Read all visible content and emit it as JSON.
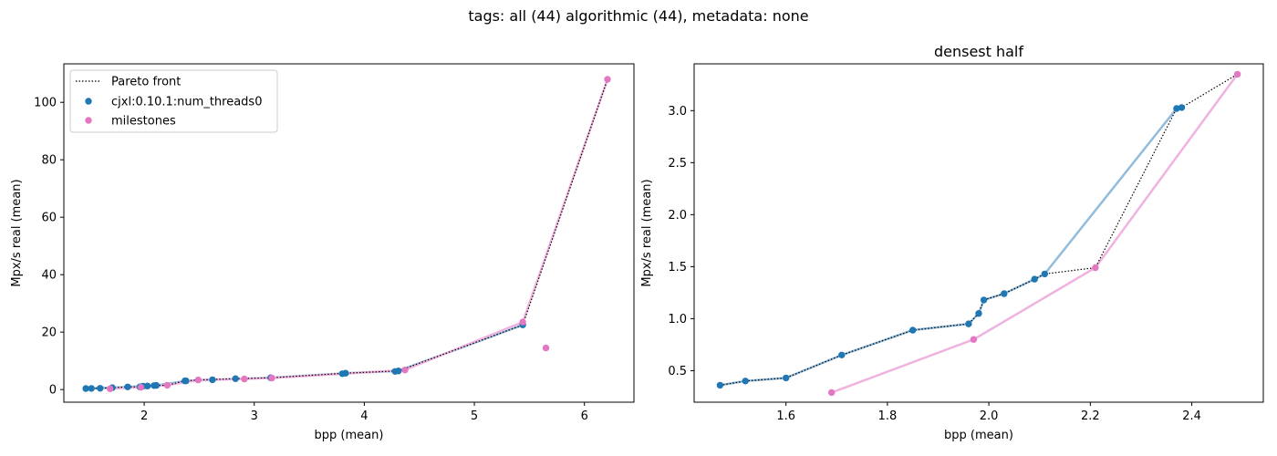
{
  "suptitle": "tags: all (44) algorithmic (44), metadata: none",
  "colors": {
    "series_blue": "#1f77b4",
    "series_pink": "#e377c2",
    "series_blue_line": "#92bcdc",
    "series_pink_line": "#f0b3e0",
    "pareto": "#000000"
  },
  "chart_data": [
    {
      "type": "scatter",
      "title": "",
      "xlabel": "bpp (mean)",
      "ylabel": "Mpx/s real (mean)",
      "xlim": [
        1.27,
        6.45
      ],
      "ylim": [
        -4.4,
        113.4
      ],
      "xticks": [
        2,
        3,
        4,
        5,
        6
      ],
      "yticks": [
        0,
        20,
        40,
        60,
        80,
        100
      ],
      "legend": "upper-left",
      "legend_entries": [
        "Pareto front",
        "cjxl:0.10.1:num_threads0",
        "milestones"
      ],
      "series": [
        {
          "name": "cjxl:0.10.1:num_threads0",
          "color": "#1f77b4",
          "line_color": "#92bcdc",
          "points": [
            [
              1.47,
              0.36
            ],
            [
              1.52,
              0.4
            ],
            [
              1.6,
              0.43
            ],
            [
              1.71,
              0.65
            ],
            [
              1.85,
              0.89
            ],
            [
              1.96,
              0.95
            ],
            [
              1.98,
              1.05
            ],
            [
              1.99,
              1.18
            ],
            [
              2.03,
              1.24
            ],
            [
              2.09,
              1.38
            ],
            [
              2.11,
              1.43
            ],
            [
              2.37,
              3.02
            ],
            [
              2.38,
              3.03
            ],
            [
              2.62,
              3.4
            ],
            [
              2.83,
              3.8
            ],
            [
              3.15,
              4.1
            ],
            [
              3.8,
              5.5
            ],
            [
              3.83,
              5.7
            ],
            [
              4.28,
              6.3
            ],
            [
              4.31,
              6.5
            ],
            [
              5.44,
              22.5
            ]
          ],
          "line": [
            [
              1.47,
              0.36
            ],
            [
              1.71,
              0.65
            ],
            [
              2.11,
              1.43
            ],
            [
              2.38,
              3.03
            ],
            [
              3.15,
              4.1
            ],
            [
              3.83,
              5.7
            ],
            [
              4.31,
              6.5
            ],
            [
              5.44,
              22.5
            ]
          ]
        },
        {
          "name": "milestones",
          "color": "#e377c2",
          "line_color": "#f0b3e0",
          "points": [
            [
              1.69,
              0.29
            ],
            [
              1.97,
              0.8
            ],
            [
              2.21,
              1.49
            ],
            [
              2.49,
              3.35
            ],
            [
              2.91,
              3.7
            ],
            [
              3.16,
              4.0
            ],
            [
              4.37,
              6.8
            ],
            [
              5.44,
              23.5
            ],
            [
              5.65,
              14.5
            ],
            [
              6.21,
              108.0
            ]
          ],
          "line": [
            [
              1.69,
              0.29
            ],
            [
              1.97,
              0.8
            ],
            [
              2.21,
              1.49
            ],
            [
              2.49,
              3.35
            ],
            [
              2.91,
              3.7
            ],
            [
              3.16,
              4.0
            ],
            [
              4.37,
              6.8
            ],
            [
              5.44,
              23.5
            ],
            [
              6.21,
              108.0
            ]
          ]
        }
      ],
      "pareto_front": [
        [
          1.47,
          0.36
        ],
        [
          1.52,
          0.4
        ],
        [
          1.6,
          0.43
        ],
        [
          1.71,
          0.65
        ],
        [
          1.85,
          0.89
        ],
        [
          1.96,
          0.95
        ],
        [
          1.98,
          1.05
        ],
        [
          1.99,
          1.18
        ],
        [
          2.03,
          1.24
        ],
        [
          2.09,
          1.38
        ],
        [
          2.11,
          1.43
        ],
        [
          2.21,
          1.49
        ],
        [
          2.37,
          3.02
        ],
        [
          2.38,
          3.03
        ],
        [
          2.49,
          3.35
        ],
        [
          2.83,
          3.8
        ],
        [
          3.15,
          4.1
        ],
        [
          3.83,
          5.7
        ],
        [
          4.31,
          6.5
        ],
        [
          5.44,
          22.5
        ],
        [
          6.21,
          108.0
        ]
      ]
    },
    {
      "type": "scatter",
      "title": "densest half",
      "xlabel": "bpp (mean)",
      "ylabel": "Mpx/s real (mean)",
      "xlim": [
        1.419,
        2.541
      ],
      "ylim": [
        0.197,
        3.45
      ],
      "xticks": [
        1.6,
        1.8,
        2.0,
        2.2,
        2.4
      ],
      "yticks": [
        0.5,
        1.0,
        1.5,
        2.0,
        2.5,
        3.0
      ],
      "legend": "none",
      "series": [
        {
          "name": "cjxl:0.10.1:num_threads0",
          "color": "#1f77b4",
          "line_color": "#92bcdc",
          "points": [
            [
              1.47,
              0.36
            ],
            [
              1.52,
              0.4
            ],
            [
              1.6,
              0.43
            ],
            [
              1.71,
              0.65
            ],
            [
              1.85,
              0.89
            ],
            [
              1.96,
              0.95
            ],
            [
              1.98,
              1.05
            ],
            [
              1.99,
              1.18
            ],
            [
              2.03,
              1.24
            ],
            [
              2.09,
              1.38
            ],
            [
              2.11,
              1.43
            ],
            [
              2.37,
              3.02
            ],
            [
              2.38,
              3.03
            ]
          ],
          "line": [
            [
              1.47,
              0.36
            ],
            [
              1.52,
              0.4
            ],
            [
              1.6,
              0.43
            ],
            [
              1.71,
              0.65
            ],
            [
              1.85,
              0.89
            ],
            [
              1.96,
              0.95
            ],
            [
              1.98,
              1.05
            ],
            [
              1.99,
              1.18
            ],
            [
              2.03,
              1.24
            ],
            [
              2.09,
              1.38
            ],
            [
              2.11,
              1.43
            ],
            [
              2.37,
              3.02
            ]
          ]
        },
        {
          "name": "milestones",
          "color": "#e377c2",
          "line_color": "#f0b3e0",
          "points": [
            [
              1.69,
              0.29
            ],
            [
              1.97,
              0.8
            ],
            [
              2.21,
              1.49
            ],
            [
              2.49,
              3.35
            ]
          ],
          "line": [
            [
              1.69,
              0.29
            ],
            [
              1.97,
              0.8
            ],
            [
              2.21,
              1.49
            ],
            [
              2.49,
              3.35
            ]
          ]
        }
      ],
      "pareto_front": [
        [
          1.47,
          0.36
        ],
        [
          1.52,
          0.4
        ],
        [
          1.6,
          0.43
        ],
        [
          1.71,
          0.65
        ],
        [
          1.85,
          0.89
        ],
        [
          1.96,
          0.95
        ],
        [
          1.98,
          1.05
        ],
        [
          1.99,
          1.18
        ],
        [
          2.03,
          1.24
        ],
        [
          2.09,
          1.38
        ],
        [
          2.11,
          1.43
        ],
        [
          2.21,
          1.49
        ],
        [
          2.37,
          3.02
        ],
        [
          2.38,
          3.03
        ],
        [
          2.49,
          3.35
        ]
      ]
    }
  ]
}
